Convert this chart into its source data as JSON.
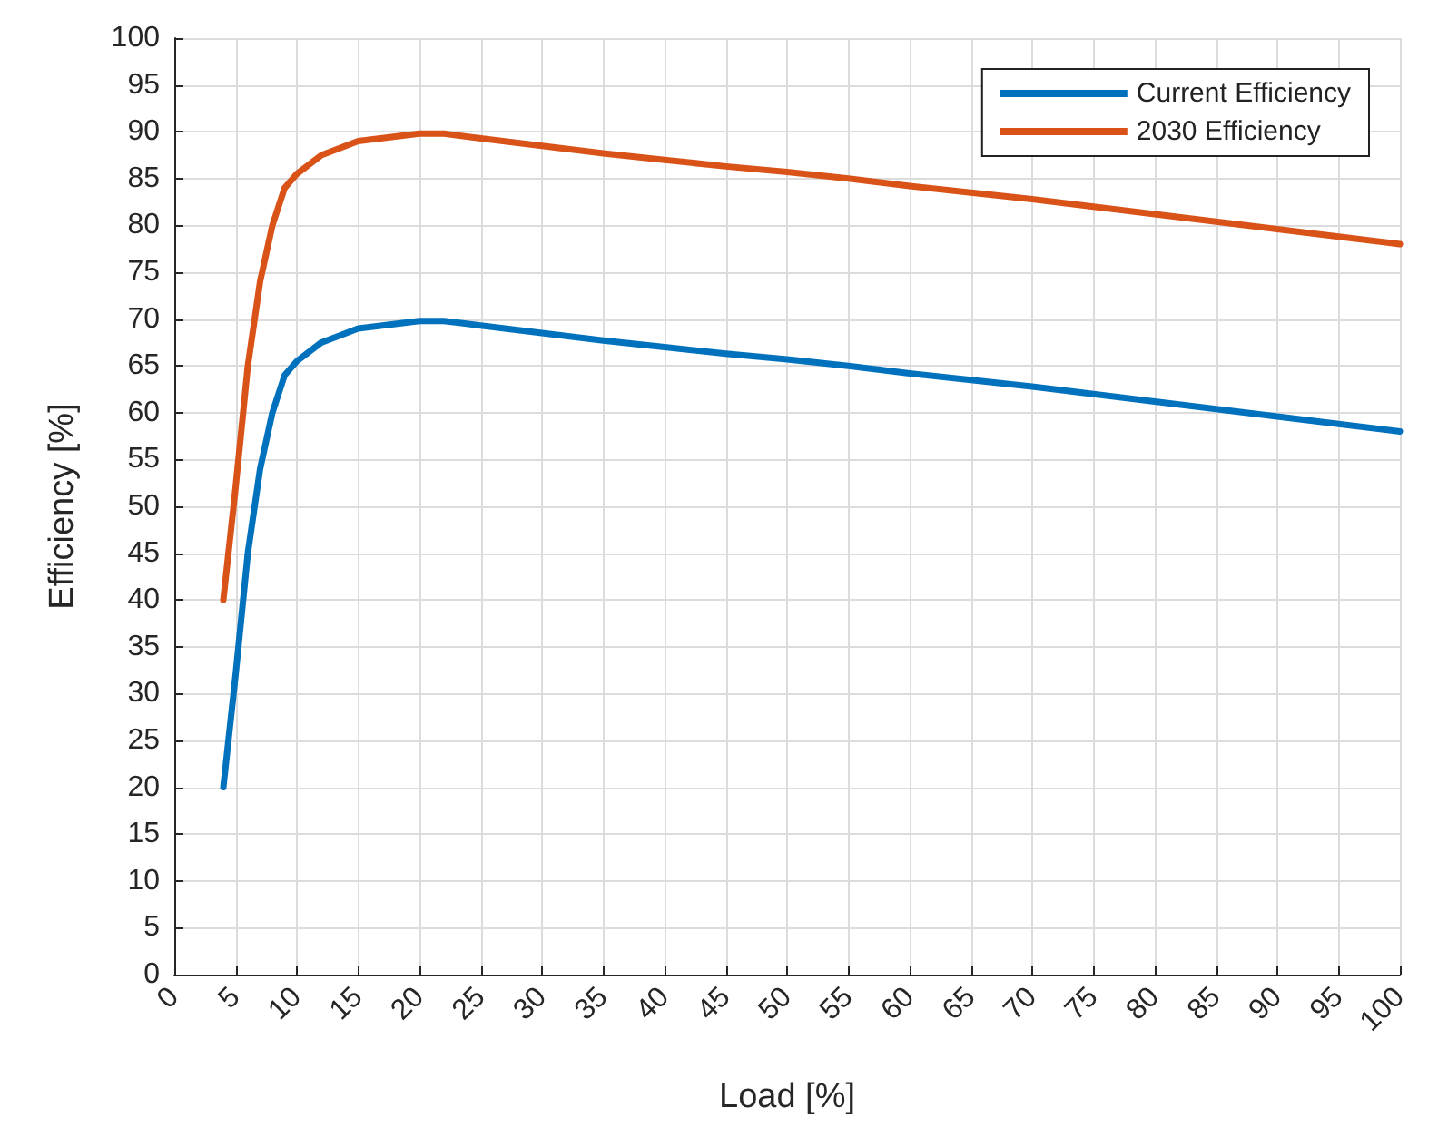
{
  "chart_data": {
    "type": "line",
    "xlabel": "Load [%]",
    "ylabel": "Efficiency [%]",
    "xlim": [
      0,
      100
    ],
    "xticks": [
      0,
      5,
      10,
      15,
      20,
      25,
      30,
      35,
      40,
      45,
      50,
      55,
      60,
      65,
      70,
      75,
      80,
      85,
      90,
      95,
      100
    ],
    "ylim": [
      0,
      100
    ],
    "yticks": [
      0,
      5,
      10,
      15,
      20,
      25,
      30,
      35,
      40,
      45,
      50,
      55,
      60,
      65,
      70,
      75,
      80,
      85,
      90,
      95,
      100
    ],
    "grid": true,
    "legend": "top right",
    "marker": "none",
    "line_style": "solid",
    "x": [
      4,
      5,
      6,
      7,
      8,
      9,
      10,
      12,
      15,
      20,
      22,
      25,
      30,
      35,
      40,
      45,
      50,
      55,
      60,
      65,
      70,
      75,
      80,
      85,
      90,
      95,
      100
    ],
    "series": [
      {
        "name": "Current Efficiency",
        "color": "#0072bd",
        "values": [
          20,
          32,
          45,
          54,
          60,
          64,
          65.5,
          67.5,
          69,
          69.8,
          69.8,
          69.3,
          68.5,
          67.7,
          67,
          66.3,
          65.7,
          65,
          64.2,
          63.5,
          62.8,
          62,
          61.2,
          60.4,
          59.6,
          58.8,
          58
        ]
      },
      {
        "name": "2030 Efficiency",
        "color": "#d95319",
        "values": [
          40,
          52,
          65,
          74,
          80,
          84,
          85.5,
          87.5,
          89,
          89.8,
          89.8,
          89.3,
          88.5,
          87.7,
          87,
          86.3,
          85.7,
          85,
          84.2,
          83.5,
          82.8,
          82,
          81.2,
          80.4,
          79.6,
          78.8,
          78
        ]
      }
    ]
  }
}
